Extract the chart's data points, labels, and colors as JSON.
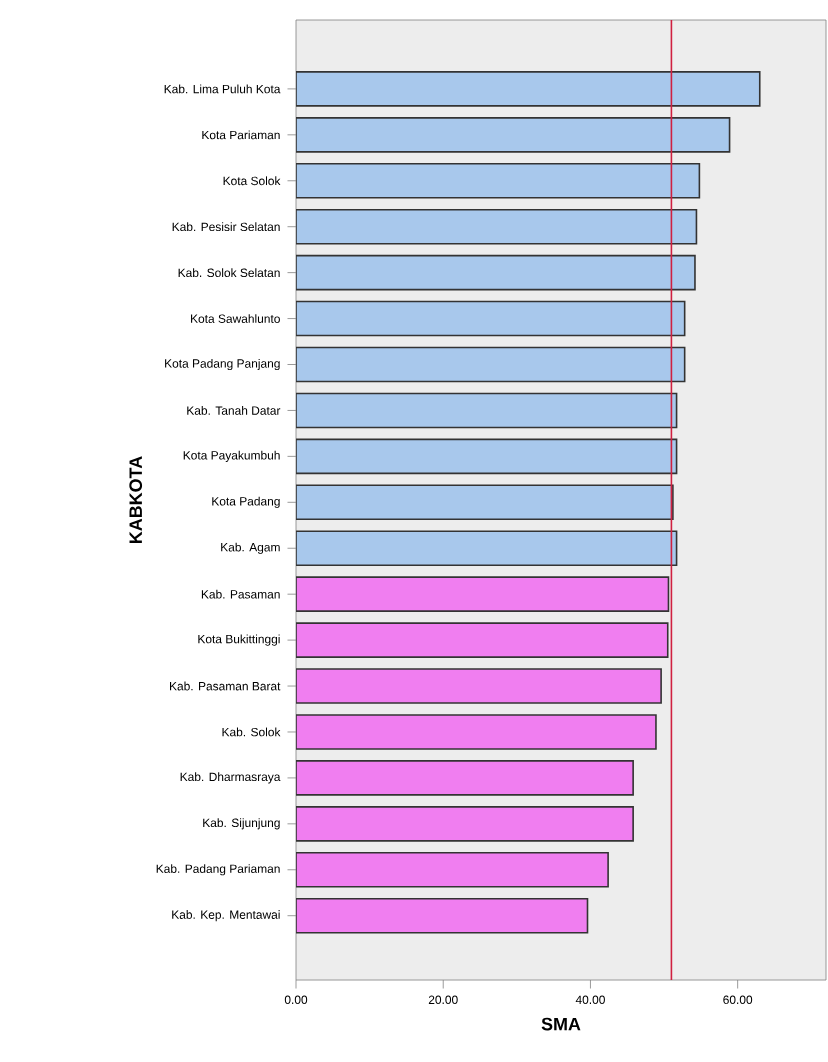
{
  "chart_data": {
    "type": "bar",
    "orientation": "horizontal",
    "xlabel": "SMA",
    "ylabel": "KABKOTA",
    "categories": [
      "Kab. Lima Puluh Kota",
      "Kota Pariaman",
      "Kota Solok",
      "Kab. Pesisir Selatan",
      "Kab. Solok Selatan",
      "Kota Sawahlunto",
      "Kota Padang Panjang",
      "Kab. Tanah Datar",
      "Kota Payakumbuh",
      "Kota Padang",
      "Kab. Agam",
      "Kab. Pasaman",
      "Kota Bukittinggi",
      "Kab. Pasaman Barat",
      "Kab. Solok",
      "Kab. Dharmasraya",
      "Kab. Sijunjung",
      "Kab. Padang Pariaman",
      "Kab. Kep. Mentawai"
    ],
    "values": [
      63.0,
      58.9,
      54.8,
      54.4,
      54.2,
      52.8,
      52.8,
      51.7,
      51.7,
      51.2,
      51.7,
      50.6,
      50.5,
      49.6,
      48.9,
      45.8,
      45.8,
      42.4,
      39.6
    ],
    "colors": [
      "#a8c8ec",
      "#a8c8ec",
      "#a8c8ec",
      "#a8c8ec",
      "#a8c8ec",
      "#a8c8ec",
      "#a8c8ec",
      "#a8c8ec",
      "#a8c8ec",
      "#a8c8ec",
      "#a8c8ec",
      "#f07ef0",
      "#f07ef0",
      "#f07ef0",
      "#f07ef0",
      "#f07ef0",
      "#f07ef0",
      "#f07ef0",
      "#f07ef0"
    ],
    "xlim": [
      0,
      72
    ],
    "xticks": [
      {
        "value": 0,
        "label": "0.00"
      },
      {
        "value": 20,
        "label": "20.00"
      },
      {
        "value": 40,
        "label": "40.00"
      },
      {
        "value": 60,
        "label": "60.00"
      }
    ],
    "ref_lines": [
      {
        "axis": "x",
        "value": 51,
        "color": "#d02040"
      }
    ],
    "grid": false
  }
}
